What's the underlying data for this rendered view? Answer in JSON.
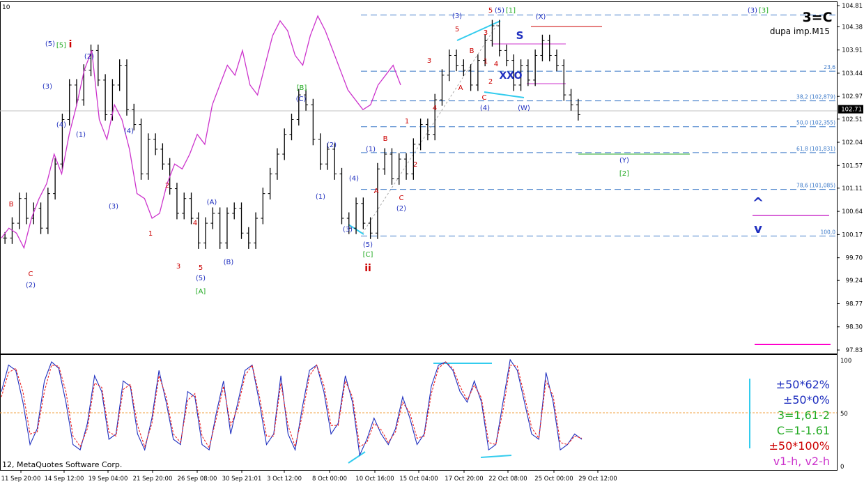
{
  "chart_data": [
    {
      "type": "line",
      "panel": "main",
      "corner_label": "10",
      "title": "3=C",
      "subtitle": "dupa imp.M15",
      "ylim": [
        97.83,
        104.81
      ],
      "y_ticks": [
        104.81,
        104.38,
        103.91,
        103.44,
        102.97,
        102.51,
        102.04,
        101.57,
        101.11,
        100.64,
        100.17,
        99.7,
        99.24,
        98.77,
        98.3,
        97.83
      ],
      "current_price": 102.71,
      "colors": {
        "price": "#000000",
        "overlay": "#cc33cc",
        "fib": "#3a78c8",
        "elliott_blue": "#1f2fbf",
        "elliott_red": "#cc0000",
        "elliott_green": "#22aa22",
        "cyan": "#33ccee"
      },
      "fib_levels": [
        {
          "label": "",
          "value": 104.62
        },
        {
          "label": "23,6",
          "value": 103.48
        },
        {
          "label": "38,2 (102,879)",
          "value": 102.879
        },
        {
          "label": "50,0 (102,355)",
          "value": 102.355
        },
        {
          "label": "61,8 (101,831)",
          "value": 101.831
        },
        {
          "label": "78,6 (101,085)",
          "value": 101.085
        },
        {
          "label": "100,0",
          "value": 100.14
        }
      ],
      "series": [
        {
          "name": "",
          "values": [
            100.1,
            100.4,
            100.9,
            100.5,
            100.7,
            100.3,
            101.0,
            101.6,
            102.5,
            103.2,
            102.9,
            103.5,
            103.9,
            103.3,
            102.6,
            103.2,
            103.6,
            102.7,
            102.4,
            101.4,
            102.1,
            101.9,
            101.6,
            101.1,
            100.6,
            100.9,
            100.5,
            100.0,
            100.4,
            100.6,
            100.0,
            100.6,
            100.7,
            100.2,
            100.0,
            100.5,
            101.0,
            101.4,
            101.8,
            102.2,
            102.5,
            103.0,
            102.8,
            102.1,
            101.6,
            101.9,
            101.4,
            100.5,
            100.3,
            100.8,
            100.4,
            100.2,
            101.5,
            101.8,
            101.3,
            101.7,
            101.4,
            102.0,
            102.4,
            102.2,
            102.9,
            103.4,
            103.8,
            103.6,
            103.5,
            103.2,
            103.7,
            104.1,
            104.4,
            103.9,
            103.7,
            103.2,
            103.6,
            103.3,
            103.8,
            104.1,
            103.8,
            103.6,
            103.0,
            102.8,
            102.6
          ]
        },
        {
          "name": "",
          "values": [
            100.1,
            100.3,
            100.2,
            99.9,
            100.5,
            100.9,
            101.2,
            101.8,
            101.4,
            102.2,
            102.8,
            103.5,
            103.9,
            102.5,
            102.1,
            102.8,
            102.5,
            101.9,
            101.0,
            100.9,
            100.5,
            100.6,
            101.2,
            101.6,
            101.5,
            101.8,
            102.2,
            102.0,
            102.8,
            103.2,
            103.6,
            103.4,
            103.9,
            103.2,
            103.0,
            103.6,
            104.2,
            104.5,
            104.3,
            103.8,
            103.6,
            104.2,
            104.6,
            104.3,
            103.9,
            103.5,
            103.1,
            102.9,
            102.7,
            102.8,
            103.2,
            103.4,
            103.6,
            103.2
          ]
        }
      ],
      "wave_labels": [
        {
          "text": "(5)",
          "color": "blue"
        },
        {
          "text": "[5]",
          "color": "green"
        },
        {
          "text": "i",
          "color": "red"
        },
        {
          "text": "(3)",
          "color": "blue"
        },
        {
          "text": "(4)",
          "color": "blue"
        },
        {
          "text": "(2)",
          "color": "blue"
        },
        {
          "text": "(1)",
          "color": "blue"
        },
        {
          "text": "(4)",
          "color": "blue"
        },
        {
          "text": "B",
          "color": "red"
        },
        {
          "text": "C",
          "color": "red"
        },
        {
          "text": "(2)",
          "color": "blue"
        },
        {
          "text": "(3)",
          "color": "blue"
        },
        {
          "text": "2",
          "color": "red"
        },
        {
          "text": "1",
          "color": "red"
        },
        {
          "text": "4",
          "color": "red"
        },
        {
          "text": "3",
          "color": "red"
        },
        {
          "text": "5",
          "color": "red"
        },
        {
          "text": "(5)",
          "color": "blue"
        },
        {
          "text": "[A]",
          "color": "green"
        },
        {
          "text": "(A)",
          "color": "blue"
        },
        {
          "text": "(B)",
          "color": "blue"
        },
        {
          "text": "[B]",
          "color": "green"
        },
        {
          "text": "(C)",
          "color": "blue"
        },
        {
          "text": "(2)",
          "color": "blue"
        },
        {
          "text": "(1)",
          "color": "blue"
        },
        {
          "text": "(4)",
          "color": "blue"
        },
        {
          "text": "(3)",
          "color": "blue"
        },
        {
          "text": "(5)",
          "color": "blue"
        },
        {
          "text": "[C]",
          "color": "green"
        },
        {
          "text": "ii",
          "color": "red"
        },
        {
          "text": "(1)",
          "color": "blue"
        },
        {
          "text": "A",
          "color": "red"
        },
        {
          "text": "B",
          "color": "red"
        },
        {
          "text": "C",
          "color": "red"
        },
        {
          "text": "(2)",
          "color": "blue"
        },
        {
          "text": "1",
          "color": "red"
        },
        {
          "text": "2",
          "color": "red"
        },
        {
          "text": "3",
          "color": "red"
        },
        {
          "text": "4",
          "color": "red"
        },
        {
          "text": "5",
          "color": "red"
        },
        {
          "text": "A",
          "color": "red"
        },
        {
          "text": "B",
          "color": "red"
        },
        {
          "text": "C",
          "color": "red"
        },
        {
          "text": "(3)",
          "color": "blue"
        },
        {
          "text": "(4)",
          "color": "blue"
        },
        {
          "text": "5",
          "color": "red"
        },
        {
          "text": "(5)",
          "color": "blue"
        },
        {
          "text": "[1]",
          "color": "green"
        },
        {
          "text": "3",
          "color": "red"
        },
        {
          "text": "1",
          "color": "red"
        },
        {
          "text": "4",
          "color": "red"
        },
        {
          "text": "2",
          "color": "red"
        },
        {
          "text": "(X)",
          "color": "blue"
        },
        {
          "text": "S",
          "color": "blue"
        },
        {
          "text": "XXO",
          "color": "blue"
        },
        {
          "text": "(W)",
          "color": "blue"
        },
        {
          "text": "(Y)",
          "color": "blue"
        },
        {
          "text": "[2]",
          "color": "green"
        },
        {
          "text": "(3)",
          "color": "blue"
        },
        {
          "text": "[3]",
          "color": "green"
        },
        {
          "text": "^",
          "color": "blue"
        },
        {
          "text": "v",
          "color": "blue"
        }
      ]
    },
    {
      "type": "line",
      "panel": "oscillator",
      "ylim": [
        0,
        100
      ],
      "y_ticks": [
        100,
        50,
        0
      ],
      "levels": [
        50
      ],
      "series": [
        {
          "name": "",
          "values": [
            70,
            95,
            90,
            60,
            20,
            35,
            80,
            98,
            92,
            60,
            20,
            15,
            40,
            85,
            70,
            25,
            30,
            80,
            75,
            30,
            15,
            45,
            90,
            60,
            25,
            20,
            70,
            65,
            20,
            15,
            50,
            80,
            30,
            60,
            90,
            95,
            60,
            20,
            30,
            85,
            30,
            15,
            55,
            90,
            95,
            70,
            30,
            40,
            85,
            60,
            10,
            25,
            45,
            30,
            20,
            35,
            65,
            45,
            20,
            30,
            75,
            95,
            98,
            90,
            70,
            60,
            80,
            60,
            15,
            20,
            60,
            100,
            90,
            60,
            30,
            25,
            88,
            60,
            15,
            20,
            30,
            25
          ]
        },
        {
          "name": "",
          "values": [
            65,
            88,
            92,
            70,
            30,
            32,
            70,
            95,
            94,
            70,
            28,
            18,
            35,
            78,
            74,
            32,
            28,
            72,
            77,
            38,
            18,
            40,
            85,
            65,
            30,
            22,
            62,
            68,
            28,
            17,
            45,
            75,
            38,
            55,
            85,
            95,
            66,
            28,
            28,
            78,
            38,
            18,
            48,
            85,
            95,
            76,
            38,
            38,
            80,
            65,
            18,
            22,
            40,
            34,
            22,
            32,
            60,
            50,
            26,
            28,
            68,
            92,
            98,
            92,
            75,
            62,
            76,
            64,
            22,
            20,
            52,
            95,
            94,
            66,
            36,
            26,
            80,
            66,
            22,
            20,
            28,
            26
          ]
        }
      ],
      "annotations": [
        {
          "text": "±50*62%",
          "color": "#1f2fbf"
        },
        {
          "text": "±50*0%",
          "color": "#1f2fbf"
        },
        {
          "text": "3=1,61-2",
          "color": "#22aa22"
        },
        {
          "text": "C=1-1.61",
          "color": "#22aa22"
        },
        {
          "text": "±50*100%",
          "color": "#cc0000"
        },
        {
          "text": "v1-h, v2-h",
          "color": "#cc33cc"
        }
      ]
    }
  ],
  "x_labels": [
    "11 Sep 20:00",
    "14 Sep 12:00",
    "19 Sep 04:00",
    "21 Sep 20:00",
    "26 Sep 08:00",
    "30 Sep 21:01",
    "3 Oct 12:00",
    "8 Oct 00:00",
    "10 Oct 16:00",
    "15 Oct 04:00",
    "17 Oct 20:00",
    "22 Oct 08:00",
    "25 Oct 00:00",
    "29 Oct 12:00"
  ],
  "copyright": "12, MetaQuotes Software Corp."
}
